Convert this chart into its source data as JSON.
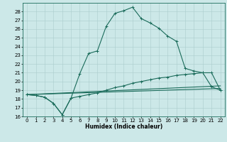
{
  "title": "",
  "xlabel": "Humidex (Indice chaleur)",
  "xlim": [
    -0.5,
    22.5
  ],
  "ylim": [
    16,
    29
  ],
  "yticks": [
    16,
    17,
    18,
    19,
    20,
    21,
    22,
    23,
    24,
    25,
    26,
    27,
    28
  ],
  "xticks": [
    0,
    1,
    2,
    3,
    4,
    5,
    6,
    7,
    8,
    9,
    10,
    11,
    12,
    13,
    14,
    15,
    16,
    17,
    18,
    19,
    20,
    21,
    22
  ],
  "bg_color": "#cce8e8",
  "line_color": "#1a6b5a",
  "grid_color": "#aacccc",
  "line_main": {
    "x": [
      0,
      1,
      2,
      3,
      4,
      5,
      6,
      7,
      8,
      9,
      10,
      11,
      12,
      13,
      14,
      15,
      16,
      17,
      18,
      19,
      20,
      21,
      22
    ],
    "y": [
      18.5,
      18.4,
      18.2,
      17.5,
      16.2,
      18.1,
      20.9,
      23.2,
      23.5,
      26.3,
      27.8,
      28.1,
      28.5,
      27.2,
      26.7,
      26.1,
      25.2,
      24.6,
      21.5,
      21.2,
      21.0,
      19.4,
      19.0
    ]
  },
  "line2": {
    "x": [
      0,
      1,
      2,
      3,
      4,
      5,
      6,
      7,
      8,
      9,
      10,
      11,
      12,
      13,
      14,
      15,
      16,
      17,
      18,
      19,
      20,
      21,
      22
    ],
    "y": [
      18.5,
      18.4,
      18.2,
      17.5,
      16.2,
      18.1,
      18.3,
      18.5,
      18.7,
      19.0,
      19.3,
      19.5,
      19.8,
      20.0,
      20.2,
      20.4,
      20.5,
      20.7,
      20.8,
      20.9,
      21.0,
      21.0,
      19.0
    ]
  },
  "line3": {
    "x": [
      0,
      22
    ],
    "y": [
      18.5,
      19.2
    ]
  },
  "line4": {
    "x": [
      0,
      22
    ],
    "y": [
      18.5,
      19.5
    ]
  }
}
